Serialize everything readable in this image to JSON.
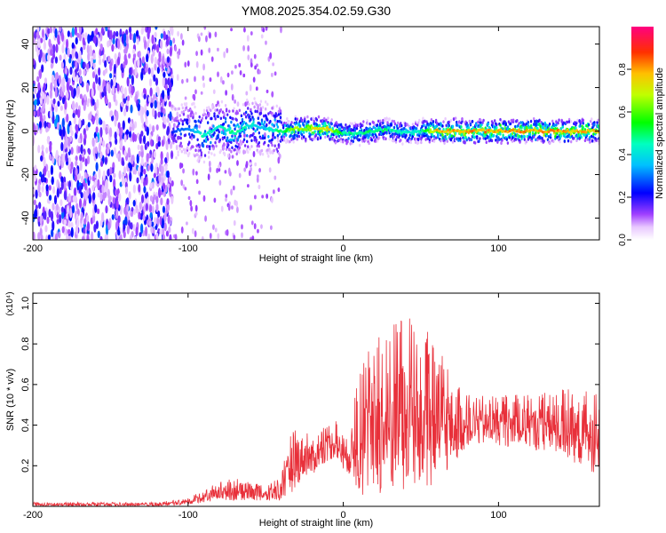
{
  "figure_title": "YM08.2025.354.02.59.G30",
  "chart_data": [
    {
      "type": "heatmap",
      "title": "YM08.2025.354.02.59.G30",
      "xlabel": "Height of straight line (km)",
      "ylabel": "Frequency (Hz)",
      "xlim": [
        -200,
        165
      ],
      "ylim": [
        -50,
        48
      ],
      "xticks": [
        -200,
        -100,
        0,
        100
      ],
      "xtick_labels": [
        "-200",
        "-100",
        "0",
        "100"
      ],
      "yticks": [
        -40,
        -20,
        0,
        20,
        40
      ],
      "ytick_labels": [
        "-40",
        "-20",
        "0",
        "20",
        "40"
      ],
      "colorbar": {
        "label": "Normalized spectral amplitude",
        "range": [
          0,
          1
        ],
        "ticks": [
          0,
          0.2,
          0.4,
          0.6,
          0.8
        ],
        "tick_labels": [
          "0.0",
          "0.2",
          "0.4",
          "0.6",
          "0.8"
        ]
      },
      "ridge": {
        "description": "dominant frequency ridge",
        "x": [
          -110,
          -100,
          -90,
          -80,
          -70,
          -60,
          -50,
          -40,
          -30,
          -20,
          -10,
          0,
          10,
          20,
          30,
          40,
          50,
          60,
          80,
          100,
          120,
          140,
          165
        ],
        "freq": [
          0,
          1,
          -2,
          2,
          -1,
          3,
          1,
          0,
          1,
          1,
          1,
          -1,
          -1,
          0,
          1,
          -1,
          0,
          0,
          0,
          0,
          0,
          0,
          0
        ],
        "amplitude": [
          0.25,
          0.35,
          0.5,
          0.45,
          0.5,
          0.45,
          0.4,
          0.55,
          0.7,
          0.75,
          0.8,
          0.5,
          0.5,
          0.55,
          0.5,
          0.45,
          0.5,
          0.85,
          0.85,
          0.85,
          0.85,
          0.85,
          0.8
        ]
      },
      "noise_region": {
        "x_from": -200,
        "x_to": -110,
        "amplitude": 0.2
      }
    },
    {
      "type": "line",
      "xlabel": "Height of straight line (km)",
      "ylabel": "SNR (10 * v/v)",
      "scale_label": "(x10⁴)",
      "xlim": [
        -200,
        165
      ],
      "ylim": [
        0,
        1.05
      ],
      "xticks": [
        -200,
        -100,
        0,
        100
      ],
      "xtick_labels": [
        "-200",
        "-100",
        "0",
        "100"
      ],
      "yticks": [
        0.2,
        0.4,
        0.6,
        0.8,
        1.0
      ],
      "ytick_labels": [
        "0.2",
        "0.4",
        "0.6",
        "0.8",
        "1.0"
      ],
      "series": [
        {
          "name": "SNR",
          "color": "#e8303a",
          "envelope_x": [
            -200,
            -150,
            -120,
            -100,
            -90,
            -80,
            -70,
            -60,
            -50,
            -40,
            -35,
            -30,
            -25,
            -20,
            -15,
            -10,
            -5,
            0,
            5,
            10,
            15,
            20,
            30,
            40,
            50,
            60,
            70,
            80,
            100,
            120,
            140,
            165
          ],
          "envelope_low": [
            0.0,
            0.0,
            0.0,
            0.01,
            0.02,
            0.03,
            0.03,
            0.03,
            0.02,
            0.03,
            0.05,
            0.1,
            0.15,
            0.15,
            0.2,
            0.22,
            0.24,
            0.18,
            0.15,
            0.05,
            0.03,
            0.05,
            0.05,
            0.05,
            0.05,
            0.1,
            0.2,
            0.3,
            0.3,
            0.28,
            0.25,
            0.15
          ],
          "envelope_high": [
            0.02,
            0.02,
            0.02,
            0.04,
            0.08,
            0.12,
            0.14,
            0.12,
            0.1,
            0.15,
            0.35,
            0.45,
            0.4,
            0.35,
            0.38,
            0.4,
            0.45,
            0.35,
            0.45,
            0.65,
            0.75,
            0.85,
            0.9,
            0.95,
            0.9,
            0.85,
            0.7,
            0.55,
            0.55,
            0.55,
            0.6,
            0.55
          ]
        }
      ]
    }
  ]
}
